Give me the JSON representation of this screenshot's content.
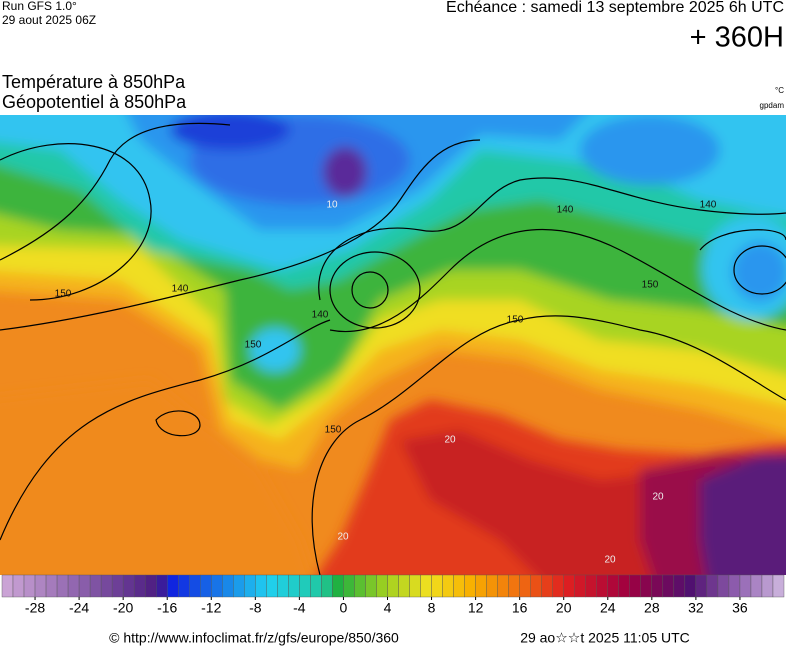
{
  "header": {
    "run": "Run GFS 1.0°",
    "run_date": "29 aout 2025 06Z",
    "echeance": "Echéance : samedi 13 septembre 2025 6h UTC",
    "lead": "+ 360H",
    "title_1": "Température à 850hPa",
    "title_2": "Géopotentiel à 850hPa",
    "unit_1": "°C",
    "unit_2": "gpdam"
  },
  "map": {
    "contour_labels": [
      "140",
      "150",
      "140",
      "140",
      "150",
      "150",
      "140",
      "150",
      "150",
      "10",
      "20",
      "20",
      "20",
      "20"
    ]
  },
  "colorbar": {
    "lim": [
      -31,
      40
    ],
    "ticks": [
      -28,
      -24,
      -20,
      -16,
      -12,
      -8,
      -4,
      0,
      4,
      8,
      12,
      16,
      20,
      24,
      28,
      32,
      36
    ]
  },
  "footer": {
    "source": "© http://www.infoclimat.fr/z/gfs/europe/850/360",
    "generated": "29 ao☆☆t 2025 11:05 UTC"
  }
}
